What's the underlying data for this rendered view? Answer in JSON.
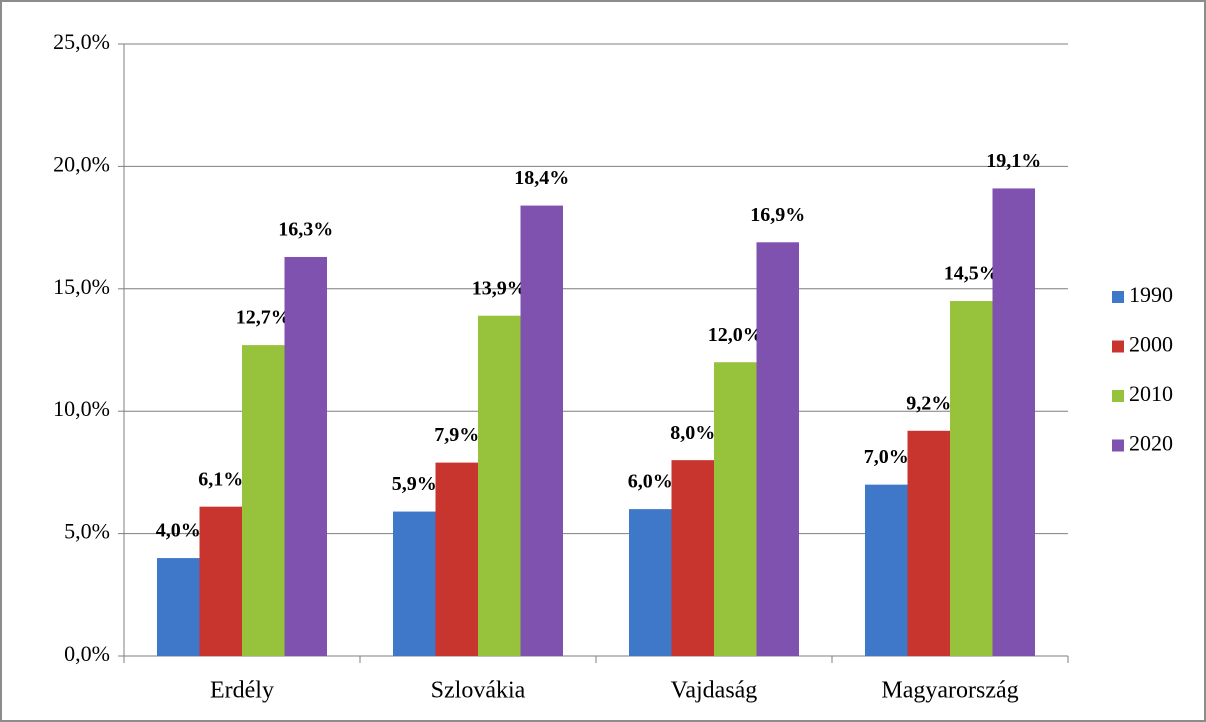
{
  "chart_data": {
    "type": "bar",
    "categories": [
      "Erdély",
      "Szlovákia",
      "Vajdaság",
      "Magyarország"
    ],
    "series": [
      {
        "name": "1990",
        "color": "#3f78c9",
        "values": [
          4.0,
          5.9,
          6.0,
          7.0
        ],
        "value_labels": [
          "4,0%",
          "5,9%",
          "6,0%",
          "7,0%"
        ]
      },
      {
        "name": "2000",
        "color": "#c8352f",
        "values": [
          6.1,
          7.9,
          8.0,
          9.2
        ],
        "value_labels": [
          "6,1%",
          "7,9%",
          "8,0%",
          "9,2%"
        ]
      },
      {
        "name": "2010",
        "color": "#97c23c",
        "values": [
          12.7,
          13.9,
          12.0,
          14.5
        ],
        "value_labels": [
          "12,7%",
          "13,9%",
          "12,0%",
          "14,5%"
        ]
      },
      {
        "name": "2020",
        "color": "#7f52b0",
        "values": [
          16.3,
          18.4,
          16.9,
          19.1
        ],
        "value_labels": [
          "16,3%",
          "18,4%",
          "16,9%",
          "19,1%"
        ]
      }
    ],
    "ylim": [
      0,
      25
    ],
    "yticks": [
      {
        "value": 0,
        "label": "0,0%"
      },
      {
        "value": 5,
        "label": "5,0%"
      },
      {
        "value": 10,
        "label": "10,0%"
      },
      {
        "value": 15,
        "label": "15,0%"
      },
      {
        "value": 20,
        "label": "20,0%"
      },
      {
        "value": 25,
        "label": "25,0%"
      }
    ],
    "grid": true,
    "legend": "right"
  }
}
